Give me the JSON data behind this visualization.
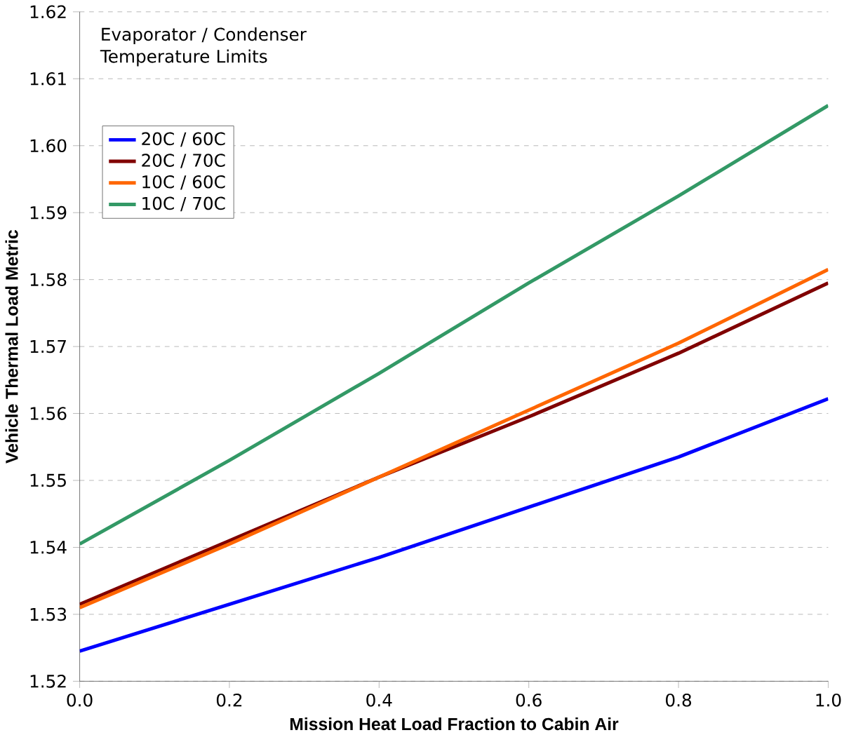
{
  "chart_data": {
    "type": "line",
    "xlabel": "Mission Heat Load Fraction to Cabin Air",
    "ylabel": "Vehicle Thermal Load Metric",
    "legend_title": "Evaporator / Condenser Temperature Limits",
    "x": [
      0,
      0.2,
      0.4,
      0.6,
      0.8,
      1.0
    ],
    "series": [
      {
        "name": "20C / 60C",
        "color": "#0000ff",
        "values": [
          1.5245,
          1.5315,
          1.5385,
          1.546,
          1.5535,
          1.5622
        ]
      },
      {
        "name": "20C / 70C",
        "color": "#800000",
        "values": [
          1.5315,
          1.541,
          1.5505,
          1.5595,
          1.569,
          1.5795
        ]
      },
      {
        "name": "10C / 60C",
        "color": "#ff6600",
        "values": [
          1.531,
          1.5405,
          1.5505,
          1.5605,
          1.5705,
          1.5815
        ]
      },
      {
        "name": "10C / 70C",
        "color": "#339966",
        "values": [
          1.5405,
          1.553,
          1.566,
          1.5795,
          1.5925,
          1.606
        ]
      }
    ],
    "xlim": [
      0,
      1.0
    ],
    "xticks": [
      {
        "value": 0,
        "label": "0.0"
      },
      {
        "value": 0.2,
        "label": "0.2"
      },
      {
        "value": 0.4,
        "label": "0.4"
      },
      {
        "value": 0.6,
        "label": "0.6"
      },
      {
        "value": 0.8,
        "label": "0.8"
      },
      {
        "value": 1.0,
        "label": "1.0"
      }
    ],
    "ylim": [
      1.52,
      1.62
    ],
    "yticks": [
      1.52,
      1.53,
      1.54,
      1.55,
      1.56,
      1.57,
      1.58,
      1.59,
      {
        "value": 1.6,
        "label": "1.60"
      },
      1.61,
      1.62
    ],
    "grid": "y",
    "legend": "top left",
    "marker": "none",
    "line_style": "solid"
  }
}
